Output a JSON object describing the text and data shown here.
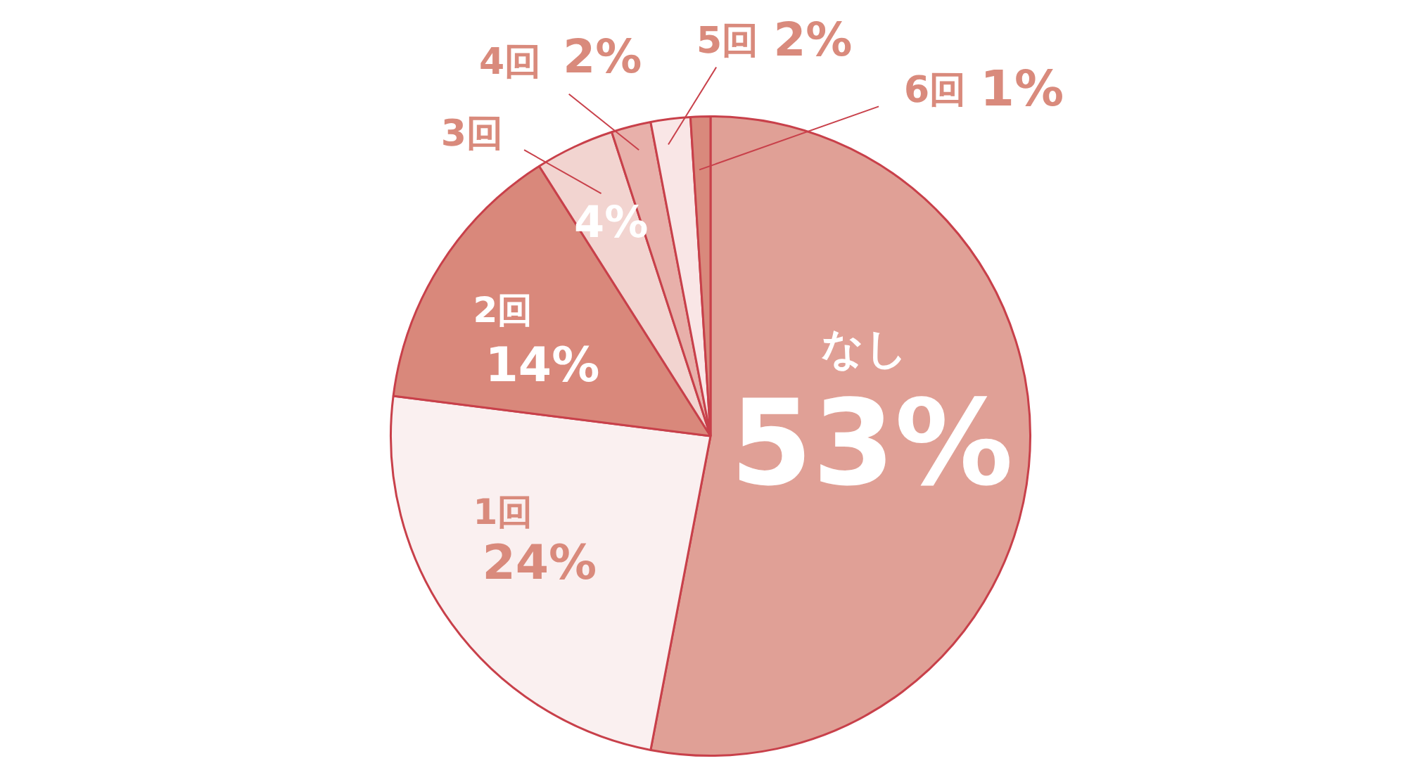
{
  "chart_data": {
    "type": "pie",
    "categories": [
      "なし",
      "1回",
      "2回",
      "3回",
      "4回",
      "5回",
      "6回"
    ],
    "values": [
      53,
      24,
      14,
      4,
      2,
      2,
      1
    ],
    "value_labels": [
      "53%",
      "24%",
      "14%",
      "4%",
      "2%",
      "2%",
      "1%"
    ],
    "colors": [
      "#e0a096",
      "#faf0f0",
      "#d9887b",
      "#f2d4d0",
      "#e8b0aa",
      "#f9e6e6",
      "#d9897c"
    ]
  }
}
